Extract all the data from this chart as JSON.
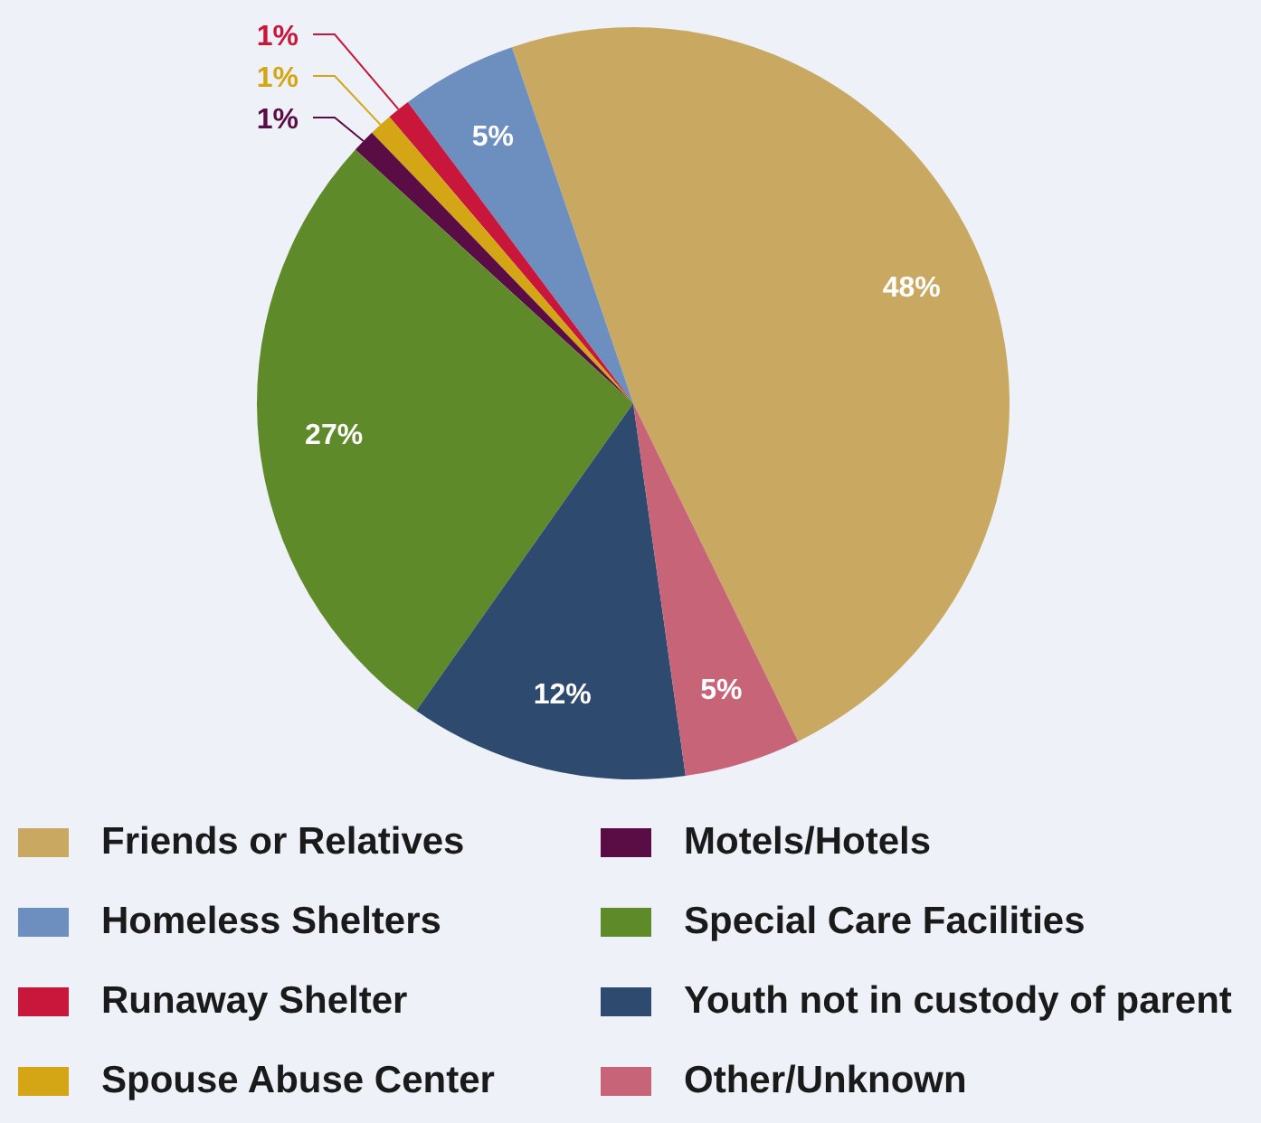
{
  "chart_data": {
    "type": "pie",
    "categories": [
      "Friends or Relatives",
      "Homeless Shelters",
      "Runaway Shelter",
      "Spouse Abuse Center",
      "Motels/Hotels",
      "Special Care Facilities",
      "Youth not in custody of parent",
      "Other/Unknown"
    ],
    "values": [
      48,
      5,
      1,
      1,
      1,
      27,
      12,
      5
    ],
    "value_labels": [
      "48%",
      "5%",
      "1%",
      "1%",
      "1%",
      "27%",
      "12%",
      "5%"
    ],
    "colors": [
      "#c9a961",
      "#6d8fbf",
      "#c8173a",
      "#d4a514",
      "#5a0d45",
      "#5f8a2a",
      "#2e4a6e",
      "#c86478"
    ],
    "legend": "bottom"
  }
}
